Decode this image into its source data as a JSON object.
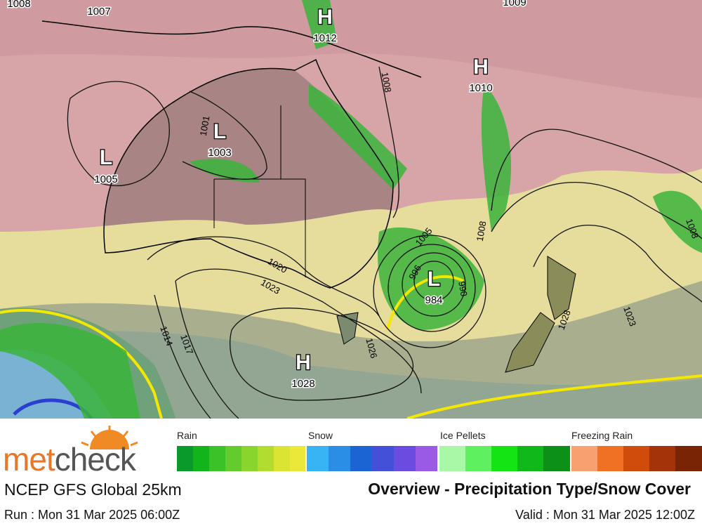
{
  "map": {
    "pressure_centers": [
      {
        "type": "H",
        "value": "1012"
      },
      {
        "type": "H",
        "value": "1010"
      },
      {
        "type": "L",
        "value": "1003"
      },
      {
        "type": "L",
        "value": "1005"
      },
      {
        "type": "L",
        "value": "984"
      },
      {
        "type": "H",
        "value": "1028"
      }
    ],
    "edge_labels": [
      "1008",
      "1007",
      "1009"
    ],
    "isobar_labels": [
      "1008",
      "1001",
      "1005",
      "1008",
      "1020",
      "1023",
      "1014",
      "1017",
      "1026",
      "1028",
      "1023",
      "1008",
      "996",
      "990"
    ]
  },
  "legend": {
    "groups": [
      "Rain",
      "Snow",
      "Ice Pellets",
      "Freezing Rain"
    ]
  },
  "logo": {
    "part_1": "met",
    "part_2": "check"
  },
  "footer": {
    "model": "NCEP GFS Global 25km",
    "title": "Overview - Precipitation Type/Snow Cover",
    "run": "Run : Mon 31 Mar 2025 06:00Z",
    "valid": "Valid : Mon 31 Mar 2025 12:00Z"
  }
}
